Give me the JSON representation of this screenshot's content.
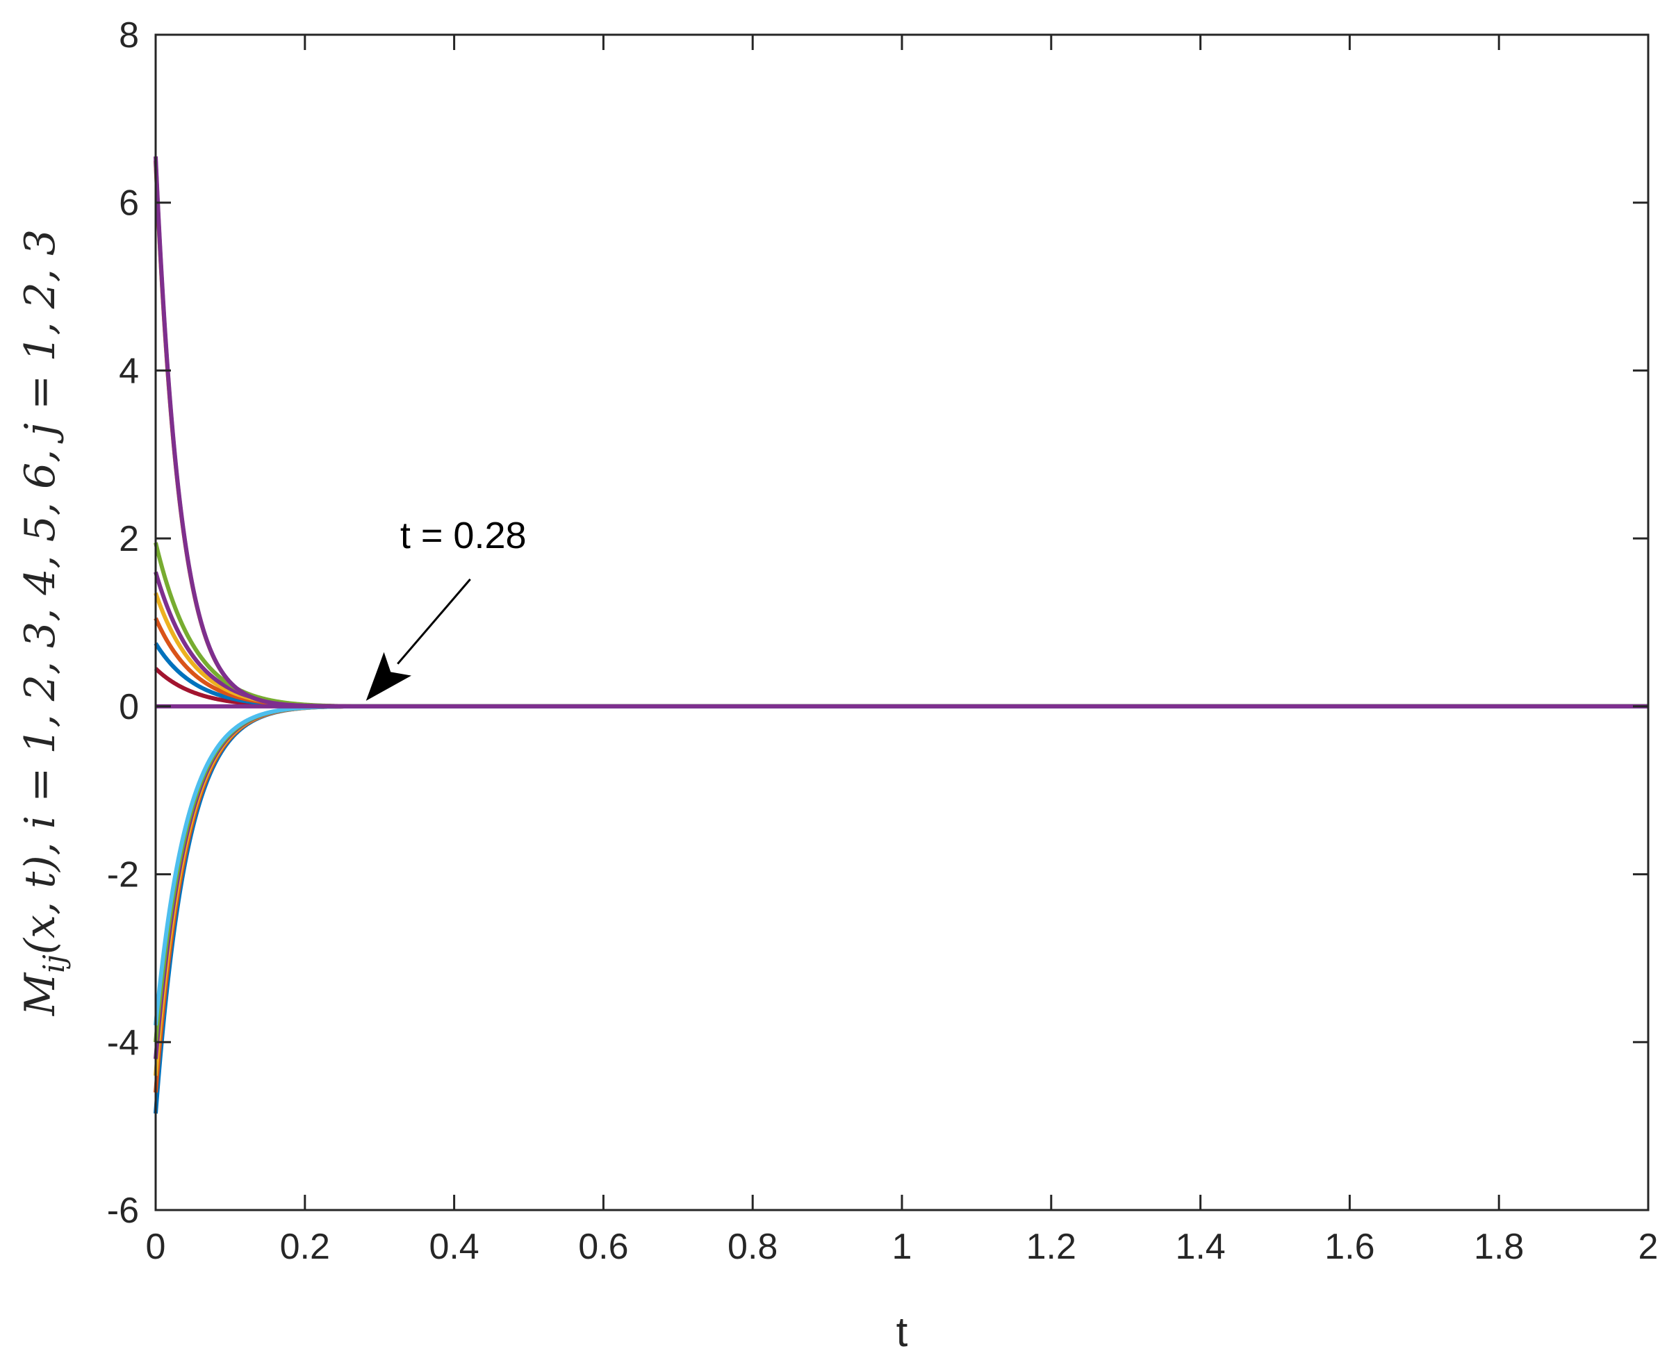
{
  "chart_data": {
    "type": "line",
    "title": "",
    "xlabel": "t",
    "ylabel": "M_ij(x, t), i = 1, 2, 3, 4, 5, 6, j = 1, 2, 3",
    "ylabel_parts": [
      "M",
      "ij",
      "(x, t), ",
      "i",
      " = 1, 2, 3, 4, 5, 6, ",
      "j",
      " = 1, 2, 3"
    ],
    "xlim": [
      0,
      2
    ],
    "ylim": [
      -6,
      8
    ],
    "xticks": [
      "0",
      "0.2",
      "0.4",
      "0.6",
      "0.8",
      "1",
      "1.2",
      "1.4",
      "1.6",
      "1.8",
      "2"
    ],
    "yticks": [
      "-6",
      "-4",
      "-2",
      "0",
      "2",
      "4",
      "6",
      "8"
    ],
    "grid": false,
    "box": true,
    "settling_time": 0.28,
    "annotation": {
      "text": "t = 0.28",
      "x": 0.28,
      "y": 0
    },
    "series_initial_values": [
      {
        "color": "#A2142F",
        "y0": 0.45
      },
      {
        "color": "#0072BD",
        "y0": 0.75
      },
      {
        "color": "#D95319",
        "y0": 1.05
      },
      {
        "color": "#EDB120",
        "y0": 1.35
      },
      {
        "color": "#7E2F8E",
        "y0": 1.6
      },
      {
        "color": "#77AC30",
        "y0": 1.95
      },
      {
        "color": "#4DBEEE",
        "y0": 6.5
      },
      {
        "color": "#D95319",
        "y0": 6.5
      },
      {
        "color": "#7E2F8E",
        "y0": 6.55
      },
      {
        "color": "#0072BD",
        "y0": -4.85
      },
      {
        "color": "#D95319",
        "y0": -4.6
      },
      {
        "color": "#EDB120",
        "y0": -4.4
      },
      {
        "color": "#7E2F8E",
        "y0": -4.2
      },
      {
        "color": "#77AC30",
        "y0": -4.0
      },
      {
        "color": "#4DBEEE",
        "y0": -3.8
      },
      {
        "color": "#7E2F8E",
        "y0": 0
      }
    ]
  }
}
